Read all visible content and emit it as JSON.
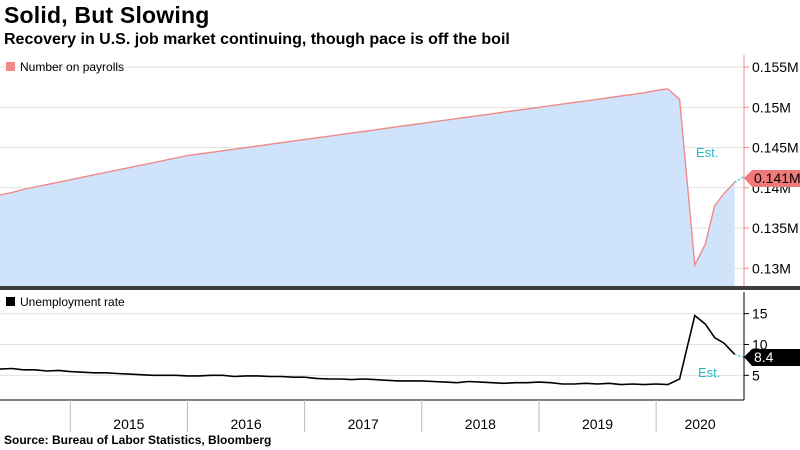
{
  "title": "Solid, But Slowing",
  "subtitle": "Recovery in U.S. job market continuing, though pace is off the boil",
  "source": "Source: Bureau of Labor Statistics, Bloomberg",
  "colors": {
    "payroll_line": "#f08a8a",
    "payroll_fill": "#cfe3fb",
    "unemployment_line": "#000000",
    "estimate": "#26b8c9",
    "payroll_badge": "#f07a7a",
    "unemployment_badge": "#000000"
  },
  "chart_data": [
    {
      "type": "area",
      "legend": {
        "label": "Number on payrolls",
        "position": "top-left"
      },
      "x_range": [
        2014.4,
        2020.75
      ],
      "ylim": [
        0.1278,
        0.1565
      ],
      "y_ticks": [
        {
          "value": 0.13,
          "label": "0.13M"
        },
        {
          "value": 0.135,
          "label": "0.135M"
        },
        {
          "value": 0.14,
          "label": "0.14M"
        },
        {
          "value": 0.145,
          "label": "0.145M"
        },
        {
          "value": 0.15,
          "label": "0.15M"
        },
        {
          "value": 0.155,
          "label": "0.155M"
        }
      ],
      "grid": true,
      "series": [
        {
          "name": "Number on payrolls",
          "points": [
            [
              2014.4,
              0.1391
            ],
            [
              2014.5,
              0.1394
            ],
            [
              2014.6,
              0.1398
            ],
            [
              2014.7,
              0.1401
            ],
            [
              2014.8,
              0.1404
            ],
            [
              2014.9,
              0.1407
            ],
            [
              2015.0,
              0.141
            ],
            [
              2015.1,
              0.1413
            ],
            [
              2015.2,
              0.1416
            ],
            [
              2015.3,
              0.1419
            ],
            [
              2015.4,
              0.1422
            ],
            [
              2015.5,
              0.1425
            ],
            [
              2015.6,
              0.1428
            ],
            [
              2015.7,
              0.1431
            ],
            [
              2015.8,
              0.1434
            ],
            [
              2015.9,
              0.1437
            ],
            [
              2016.0,
              0.144
            ],
            [
              2016.1,
              0.1442
            ],
            [
              2016.2,
              0.1444
            ],
            [
              2016.3,
              0.1446
            ],
            [
              2016.4,
              0.1448
            ],
            [
              2016.5,
              0.145
            ],
            [
              2016.6,
              0.1452
            ],
            [
              2016.7,
              0.1454
            ],
            [
              2016.8,
              0.1456
            ],
            [
              2016.9,
              0.1458
            ],
            [
              2017.0,
              0.146
            ],
            [
              2017.1,
              0.1462
            ],
            [
              2017.2,
              0.1464
            ],
            [
              2017.3,
              0.1466
            ],
            [
              2017.4,
              0.1468
            ],
            [
              2017.5,
              0.147
            ],
            [
              2017.6,
              0.1472
            ],
            [
              2017.7,
              0.1474
            ],
            [
              2017.8,
              0.1476
            ],
            [
              2017.9,
              0.1478
            ],
            [
              2018.0,
              0.148
            ],
            [
              2018.1,
              0.1482
            ],
            [
              2018.2,
              0.1484
            ],
            [
              2018.3,
              0.1486
            ],
            [
              2018.4,
              0.1488
            ],
            [
              2018.5,
              0.149
            ],
            [
              2018.6,
              0.1492
            ],
            [
              2018.7,
              0.1494
            ],
            [
              2018.8,
              0.1496
            ],
            [
              2018.9,
              0.1498
            ],
            [
              2019.0,
              0.15
            ],
            [
              2019.1,
              0.1502
            ],
            [
              2019.2,
              0.1504
            ],
            [
              2019.3,
              0.1506
            ],
            [
              2019.4,
              0.1508
            ],
            [
              2019.5,
              0.151
            ],
            [
              2019.6,
              0.1512
            ],
            [
              2019.7,
              0.1514
            ],
            [
              2019.8,
              0.1516
            ],
            [
              2019.9,
              0.1518
            ],
            [
              2020.0,
              0.1521
            ],
            [
              2020.1,
              0.1523
            ],
            [
              2020.2,
              0.151
            ],
            [
              2020.33,
              0.1304
            ],
            [
              2020.42,
              0.133
            ],
            [
              2020.5,
              0.1378
            ],
            [
              2020.58,
              0.1393
            ],
            [
              2020.67,
              0.1407
            ]
          ]
        },
        {
          "name": "Est.",
          "points": [
            [
              2020.67,
              0.1407
            ],
            [
              2020.75,
              0.1414
            ]
          ]
        }
      ],
      "annotations": [
        {
          "text": "Est."
        }
      ],
      "last_value_label": "0.141M"
    },
    {
      "type": "line",
      "legend": {
        "label": "Unemployment rate",
        "position": "top-left"
      },
      "x_range": [
        2014.4,
        2020.75
      ],
      "ylim": [
        1,
        18.5
      ],
      "y_ticks": [
        {
          "value": 5,
          "label": "5"
        },
        {
          "value": 10,
          "label": "10"
        },
        {
          "value": 15,
          "label": "15"
        }
      ],
      "grid": true,
      "series": [
        {
          "name": "Unemployment rate",
          "points": [
            [
              2014.4,
              6.0
            ],
            [
              2014.5,
              6.1
            ],
            [
              2014.6,
              5.9
            ],
            [
              2014.7,
              5.9
            ],
            [
              2014.8,
              5.7
            ],
            [
              2014.9,
              5.8
            ],
            [
              2015.0,
              5.6
            ],
            [
              2015.1,
              5.5
            ],
            [
              2015.2,
              5.4
            ],
            [
              2015.3,
              5.4
            ],
            [
              2015.4,
              5.3
            ],
            [
              2015.5,
              5.2
            ],
            [
              2015.6,
              5.1
            ],
            [
              2015.7,
              5.0
            ],
            [
              2015.8,
              5.0
            ],
            [
              2015.9,
              5.0
            ],
            [
              2016.0,
              4.9
            ],
            [
              2016.1,
              4.9
            ],
            [
              2016.2,
              5.0
            ],
            [
              2016.3,
              5.0
            ],
            [
              2016.4,
              4.8
            ],
            [
              2016.5,
              4.9
            ],
            [
              2016.6,
              4.9
            ],
            [
              2016.7,
              4.8
            ],
            [
              2016.8,
              4.8
            ],
            [
              2016.9,
              4.7
            ],
            [
              2017.0,
              4.7
            ],
            [
              2017.1,
              4.5
            ],
            [
              2017.2,
              4.4
            ],
            [
              2017.3,
              4.4
            ],
            [
              2017.4,
              4.3
            ],
            [
              2017.5,
              4.4
            ],
            [
              2017.6,
              4.3
            ],
            [
              2017.7,
              4.2
            ],
            [
              2017.8,
              4.1
            ],
            [
              2017.9,
              4.1
            ],
            [
              2018.0,
              4.1
            ],
            [
              2018.1,
              4.0
            ],
            [
              2018.2,
              3.9
            ],
            [
              2018.3,
              3.8
            ],
            [
              2018.4,
              4.0
            ],
            [
              2018.5,
              3.9
            ],
            [
              2018.6,
              3.8
            ],
            [
              2018.7,
              3.7
            ],
            [
              2018.8,
              3.8
            ],
            [
              2018.9,
              3.8
            ],
            [
              2019.0,
              3.9
            ],
            [
              2019.1,
              3.8
            ],
            [
              2019.2,
              3.6
            ],
            [
              2019.3,
              3.6
            ],
            [
              2019.4,
              3.7
            ],
            [
              2019.5,
              3.6
            ],
            [
              2019.6,
              3.7
            ],
            [
              2019.7,
              3.5
            ],
            [
              2019.8,
              3.6
            ],
            [
              2019.9,
              3.5
            ],
            [
              2020.0,
              3.6
            ],
            [
              2020.1,
              3.5
            ],
            [
              2020.2,
              4.4
            ],
            [
              2020.33,
              14.7
            ],
            [
              2020.42,
              13.3
            ],
            [
              2020.5,
              11.1
            ],
            [
              2020.58,
              10.2
            ],
            [
              2020.67,
              8.4
            ]
          ]
        },
        {
          "name": "Est.",
          "points": [
            [
              2020.67,
              8.4
            ],
            [
              2020.75,
              7.9
            ]
          ]
        }
      ],
      "annotations": [
        {
          "text": "Est."
        }
      ],
      "last_value_label": "8.4"
    }
  ],
  "x_axis": {
    "ticks": [
      2015,
      2016,
      2017,
      2018,
      2019,
      2020
    ],
    "labels": [
      "2015",
      "2016",
      "2017",
      "2018",
      "2019",
      "2020"
    ]
  }
}
